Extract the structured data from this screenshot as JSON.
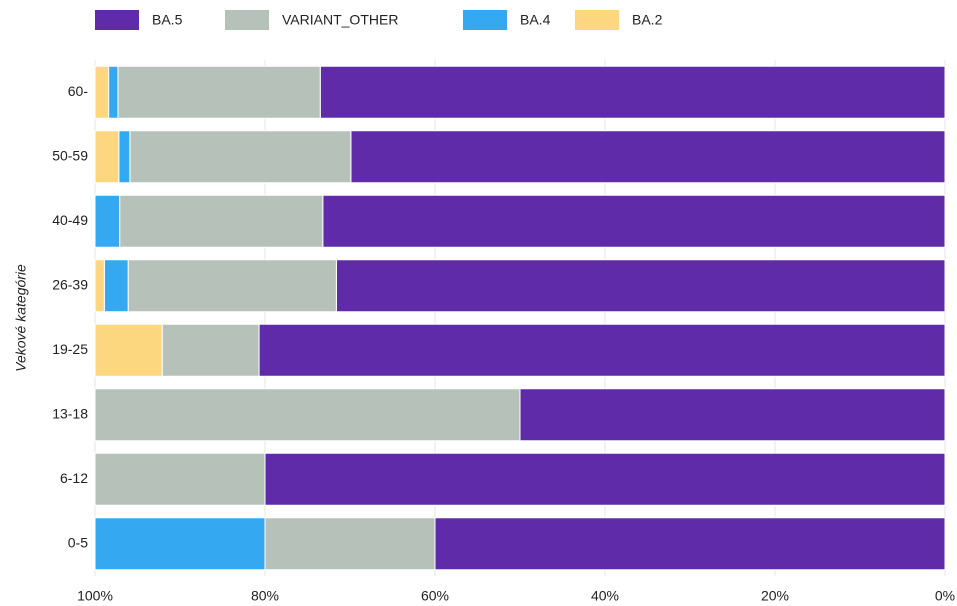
{
  "chart_data": {
    "type": "stacked_barh",
    "y_label": "Vekové kategórie",
    "categories": [
      "60-",
      "50-59",
      "40-49",
      "26-39",
      "19-25",
      "13-18",
      "6-12",
      "0-5"
    ],
    "series": [
      {
        "name": "BA.5",
        "color": "#5f2ba8",
        "values": [
          73.5,
          69.9,
          73.2,
          71.6,
          80.7,
          50,
          80,
          60
        ]
      },
      {
        "name": "VARIANT_OTHER",
        "color": "#b6c2b9",
        "values": [
          23.8,
          26.0,
          23.9,
          24.5,
          11.4,
          50,
          20,
          20
        ]
      },
      {
        "name": "BA.4",
        "color": "#34a9f1",
        "values": [
          1.1,
          1.3,
          2.9,
          2.8,
          0,
          0,
          0,
          20
        ]
      },
      {
        "name": "BA.2",
        "color": "#fcd77f",
        "values": [
          1.6,
          2.8,
          0,
          1.1,
          7.9,
          0,
          0,
          0
        ]
      }
    ],
    "xlim": [
      100,
      0
    ],
    "xticks": [
      {
        "value": 100,
        "label": "100%"
      },
      {
        "value": 80,
        "label": "80%"
      },
      {
        "value": 60,
        "label": "60%"
      },
      {
        "value": 40,
        "label": "40%"
      },
      {
        "value": 20,
        "label": "20%"
      },
      {
        "value": 0,
        "label": "0%"
      }
    ],
    "grid": true,
    "legend": "top"
  }
}
